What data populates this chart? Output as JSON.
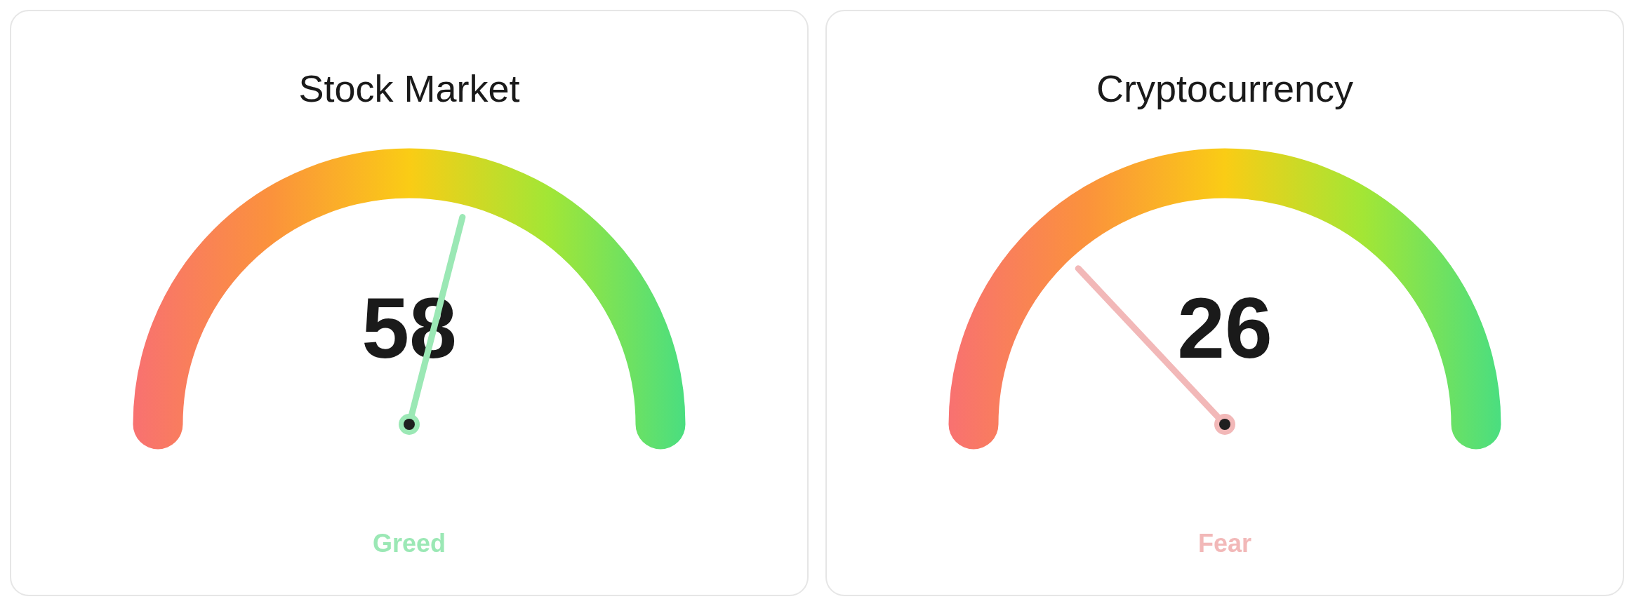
{
  "chart_data": [
    {
      "type": "other",
      "title": "Stock Market",
      "values": [
        58
      ],
      "data_labels": true,
      "annotations": [
        "Greed"
      ]
    },
    {
      "type": "other",
      "title": "Cryptocurrency",
      "values": [
        26
      ],
      "data_labels": true,
      "annotations": [
        "Fear"
      ]
    }
  ]
}
